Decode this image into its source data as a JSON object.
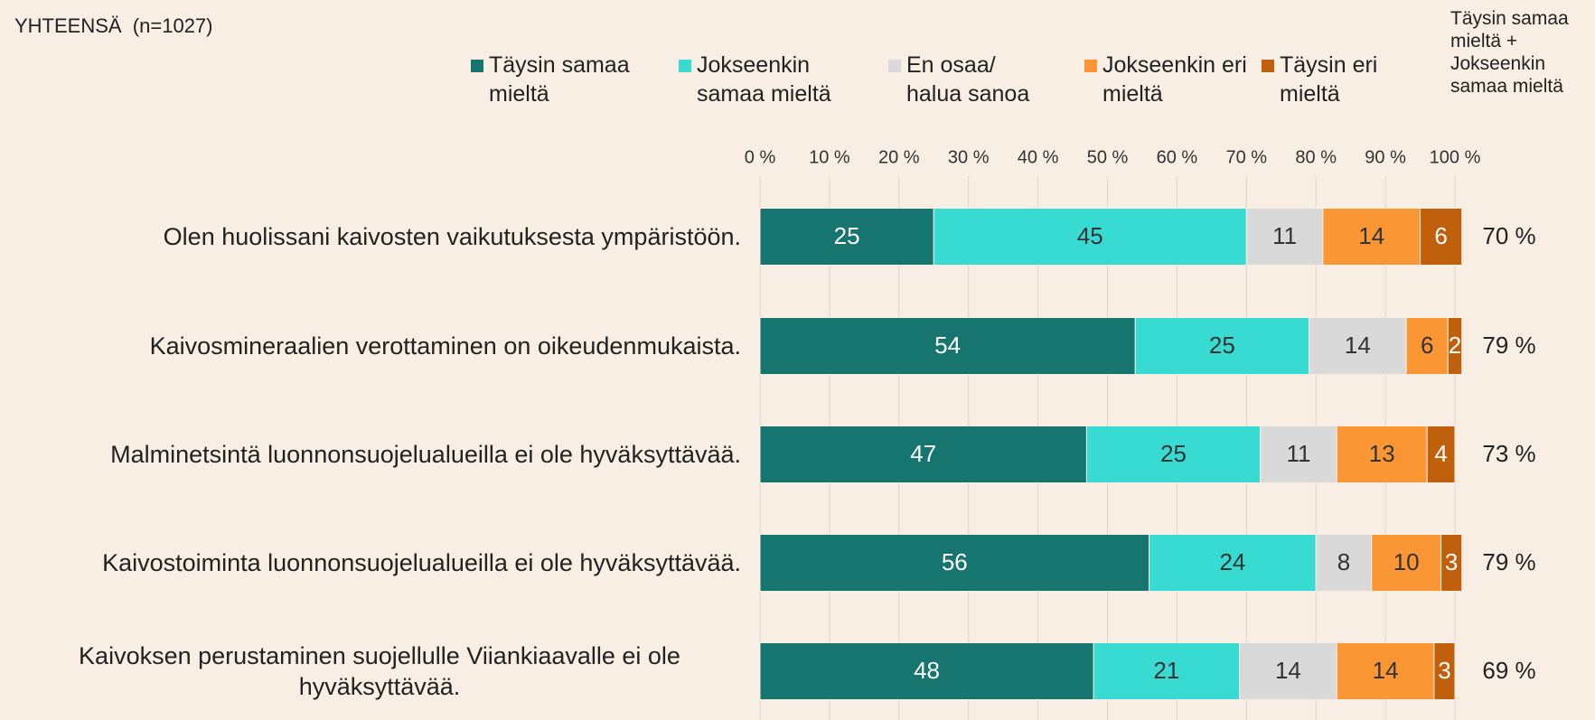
{
  "chart_data": {
    "type": "stacked-barh",
    "title": "YHTEENSÄ  (n=1027)",
    "categories": [
      "Olen huolissani kaivosten vaikutuksesta ympäristöön.",
      "Kaivosmineraalien verottaminen on oikeudenmukaista.",
      "Malminetsintä luonnonsuojelualueilla ei ole hyväksyttävää.",
      "Kaivostoiminta luonnonsuojelualueilla ei ole hyväksyttävää.",
      "Kaivoksen perustaminen suojellulle Viiankiaavalle ei ole hyväksyttävää."
    ],
    "series": [
      {
        "name": "Täysin samaa mieltä",
        "color": "#17756f",
        "values": [
          25,
          54,
          47,
          56,
          48
        ]
      },
      {
        "name": "Jokseenkin samaa mieltä",
        "color": "#37dbd2",
        "values": [
          45,
          25,
          25,
          24,
          21
        ]
      },
      {
        "name": "En osaa/ halua sanoa",
        "color": "#d9d9d9",
        "values": [
          11,
          14,
          11,
          8,
          14
        ]
      },
      {
        "name": "Jokseenkin eri mieltä",
        "color": "#fb9634",
        "values": [
          14,
          6,
          13,
          10,
          14
        ]
      },
      {
        "name": "Täysin eri mieltä",
        "color": "#c0600c",
        "values": [
          6,
          2,
          4,
          3,
          3
        ]
      }
    ],
    "xlim": [
      0,
      100
    ],
    "xticks": [
      {
        "value": 0,
        "label": "0 %"
      },
      {
        "value": 10,
        "label": "10 %"
      },
      {
        "value": 20,
        "label": "20 %"
      },
      {
        "value": 30,
        "label": "30 %"
      },
      {
        "value": 40,
        "label": "40 %"
      },
      {
        "value": 50,
        "label": "50 %"
      },
      {
        "value": 60,
        "label": "60 %"
      },
      {
        "value": 70,
        "label": "70 %"
      },
      {
        "value": 80,
        "label": "80 %"
      },
      {
        "value": 90,
        "label": "90 %"
      },
      {
        "value": 100,
        "label": "100 %"
      }
    ],
    "grid": true,
    "totals": {
      "header": "Täysin samaa mieltä + Jokseenkin samaa mieltä",
      "values": [
        70,
        79,
        73,
        79,
        69
      ],
      "value_labels": [
        "70 %",
        "79 %",
        "73 %",
        "79 %",
        "69 %"
      ]
    }
  }
}
